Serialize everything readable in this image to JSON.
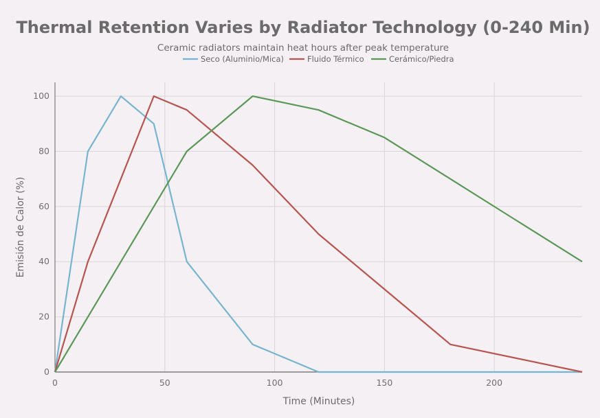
{
  "chart_data": {
    "type": "line",
    "title": "Thermal Retention Varies by Radiator Technology (0-240 Min)",
    "subtitle": "Ceramic radiators maintain heat hours after peak temperature",
    "xlabel": "Time (Minutes)",
    "ylabel": "Emisión de Calor (%)",
    "xlim": [
      0,
      240
    ],
    "ylim": [
      0,
      105
    ],
    "xticks": [
      0,
      50,
      100,
      150,
      200
    ],
    "yticks": [
      0,
      20,
      40,
      60,
      80,
      100
    ],
    "grid": true,
    "legend_position": "top-center",
    "series": [
      {
        "name": "Seco (Aluminio/Mica)",
        "color": "#76b5d0",
        "x": [
          0,
          15,
          30,
          45,
          60,
          90,
          120,
          180,
          240
        ],
        "y": [
          0,
          80,
          100,
          90,
          40,
          10,
          0,
          0,
          0
        ]
      },
      {
        "name": "Fluido Térmico",
        "color": "#b9534d",
        "x": [
          0,
          15,
          45,
          60,
          90,
          120,
          150,
          180,
          240
        ],
        "y": [
          0,
          40,
          100,
          95,
          75,
          50,
          30,
          10,
          0
        ]
      },
      {
        "name": "Cerámico/Piedra",
        "color": "#5a9858",
        "x": [
          0,
          60,
          90,
          120,
          150,
          180,
          210,
          240
        ],
        "y": [
          0,
          80,
          100,
          95,
          85,
          70,
          55,
          40
        ]
      }
    ]
  }
}
